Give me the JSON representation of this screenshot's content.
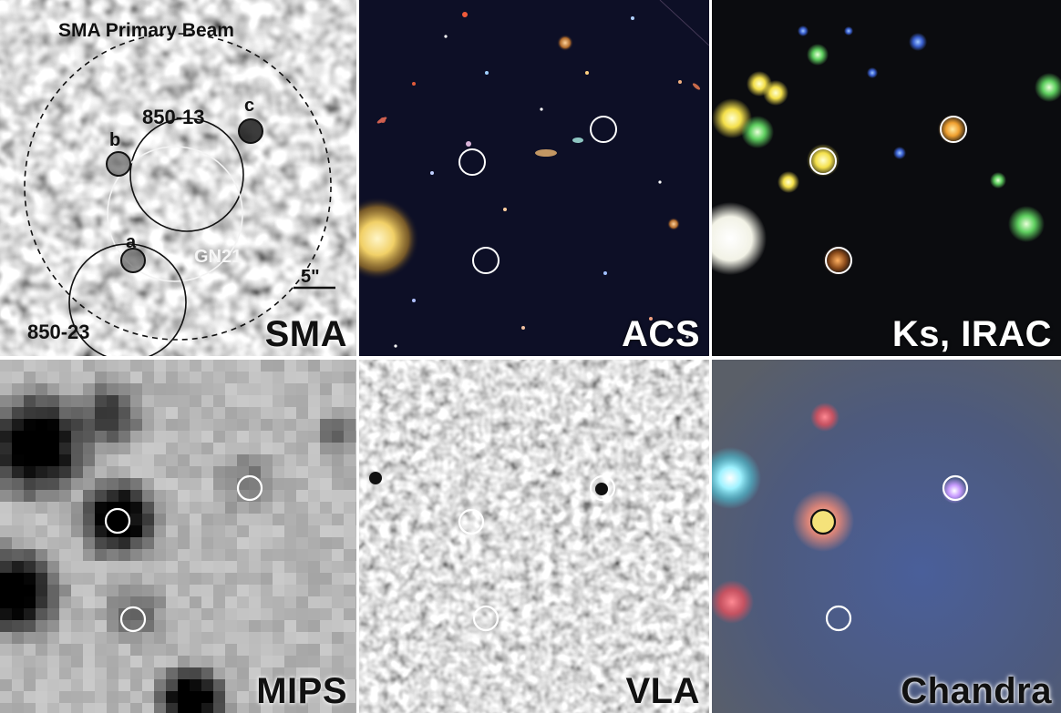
{
  "panels": {
    "sma": {
      "label": "SMA",
      "beam_label": "SMA Primary Beam",
      "source_a": "a",
      "source_b": "b",
      "source_c": "c",
      "circle_850_13": "850-13",
      "circle_850_23": "850-23",
      "circle_gn21": "GN21",
      "scale_bar": "5\""
    },
    "acs": {
      "label": "ACS"
    },
    "irac": {
      "label": "Ks, IRAC"
    },
    "mips": {
      "label": "MIPS"
    },
    "vla": {
      "label": "VLA"
    },
    "chandra": {
      "label": "Chandra"
    }
  },
  "colors": {
    "separator": "#ffffff",
    "marker_white": "#ffffff",
    "marker_black": "#111111",
    "chandra_source_fill": "#f5e27a",
    "acs_background": "#0d0f26",
    "irac_background": "#0b0c0f",
    "chandra_background": "#4a5a86"
  }
}
